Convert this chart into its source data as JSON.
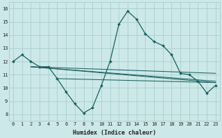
{
  "xlabel": "Humidex (Indice chaleur)",
  "bg_color": "#cce8e8",
  "grid_color": "#aacece",
  "line_color": "#1a6060",
  "x_ticks": [
    0,
    1,
    2,
    3,
    4,
    5,
    6,
    7,
    8,
    9,
    10,
    11,
    12,
    13,
    14,
    15,
    16,
    17,
    18,
    19,
    20,
    21,
    22,
    23
  ],
  "y_ticks": [
    8,
    9,
    10,
    11,
    12,
    13,
    14,
    15,
    16
  ],
  "xlim": [
    -0.5,
    23.5
  ],
  "ylim": [
    7.5,
    16.5
  ],
  "series1_x": [
    0,
    1,
    2,
    3,
    4,
    5,
    6,
    7,
    8,
    9,
    10,
    11,
    12,
    13,
    14,
    15,
    16,
    17,
    18,
    19,
    20,
    21,
    22,
    23
  ],
  "series1_y": [
    12.0,
    12.5,
    12.0,
    11.6,
    11.6,
    10.7,
    9.7,
    8.8,
    8.1,
    8.5,
    10.15,
    12.0,
    14.8,
    15.8,
    15.2,
    14.1,
    13.5,
    13.2,
    12.5,
    11.1,
    11.0,
    10.5,
    9.6,
    10.2
  ],
  "series2_x": [
    2,
    23
  ],
  "series2_y": [
    11.6,
    11.1
  ],
  "series3_x": [
    2,
    23
  ],
  "series3_y": [
    11.6,
    10.4
  ],
  "series4_x": [
    2,
    23
  ],
  "series4_y": [
    11.6,
    10.5
  ],
  "series5_x": [
    5,
    23
  ],
  "series5_y": [
    10.7,
    10.4
  ]
}
